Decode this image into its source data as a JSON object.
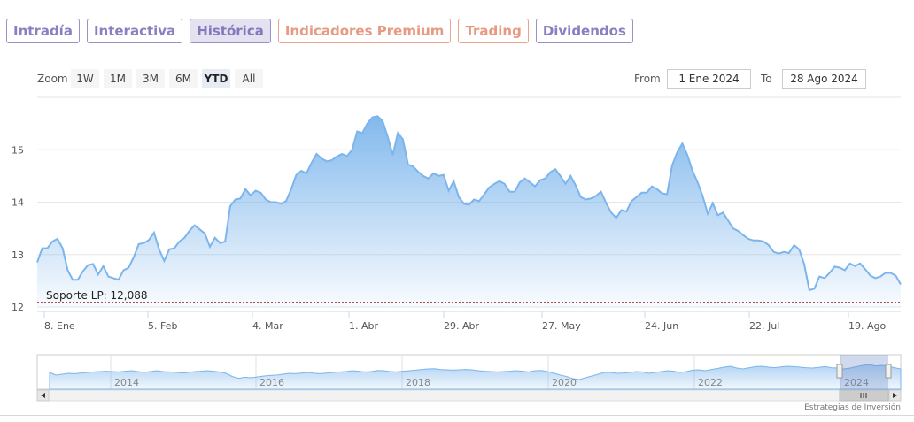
{
  "tabs": [
    {
      "label": "Intradía",
      "style": "purple"
    },
    {
      "label": "Interactiva",
      "style": "purple"
    },
    {
      "label": "Histórica",
      "style": "active"
    },
    {
      "label": "Indicadores Premium",
      "style": "orange"
    },
    {
      "label": "Trading",
      "style": "orange"
    },
    {
      "label": "Dividendos",
      "style": "purple"
    }
  ],
  "zoom": {
    "label": "Zoom",
    "buttons": [
      "1W",
      "1M",
      "3M",
      "6M",
      "YTD",
      "All"
    ],
    "selected": "YTD"
  },
  "range": {
    "from_label": "From",
    "from_value": "1 Ene 2024",
    "to_label": "To",
    "to_value": "28 Ago 2024"
  },
  "credits": "Estrategias de Inversión",
  "colors": {
    "line": "#7cb5ec",
    "fill_top": "#7cb5ec",
    "support": "#8b1a1a",
    "tab_purple": "#8a7fc0",
    "tab_orange": "#e89a80"
  },
  "chart_data": {
    "type": "area",
    "title": "",
    "ylim": [
      12,
      16
    ],
    "yticks": [
      12,
      13,
      14,
      15
    ],
    "xticks": [
      "8. Ene",
      "5. Feb",
      "4. Mar",
      "1. Abr",
      "29. Abr",
      "27. May",
      "24. Jun",
      "22. Jul",
      "19. Ago"
    ],
    "grid": true,
    "annotation": {
      "label": "Soporte LP: 12,088",
      "value": 12.088
    },
    "series": [
      {
        "values": [
          12.85,
          13.12,
          13.12,
          13.25,
          13.3,
          13.12,
          12.7,
          12.52,
          12.52,
          12.68,
          12.8,
          12.82,
          12.62,
          12.78,
          12.58,
          12.55,
          12.52,
          12.7,
          12.75,
          12.95,
          13.2,
          13.22,
          13.28,
          13.42,
          13.1,
          12.88,
          13.1,
          13.12,
          13.25,
          13.32,
          13.46,
          13.56,
          13.48,
          13.4,
          13.15,
          13.32,
          13.22,
          13.25,
          13.92,
          14.05,
          14.07,
          14.25,
          14.13,
          14.22,
          14.18,
          14.05,
          14.0,
          14.0,
          13.97,
          14.02,
          14.25,
          14.52,
          14.6,
          14.55,
          14.75,
          14.92,
          14.83,
          14.78,
          14.8,
          14.87,
          14.92,
          14.88,
          15.0,
          15.35,
          15.32,
          15.5,
          15.62,
          15.64,
          15.55,
          15.25,
          14.9,
          15.32,
          15.2,
          14.72,
          14.68,
          14.58,
          14.5,
          14.45,
          14.55,
          14.5,
          14.52,
          14.22,
          14.4,
          14.1,
          13.97,
          13.95,
          14.05,
          14.02,
          14.15,
          14.28,
          14.35,
          14.4,
          14.35,
          14.2,
          14.2,
          14.38,
          14.45,
          14.38,
          14.3,
          14.42,
          14.45,
          14.57,
          14.63,
          14.5,
          14.35,
          14.5,
          14.32,
          14.1,
          14.05,
          14.07,
          14.12,
          14.2,
          13.98,
          13.8,
          13.7,
          13.85,
          13.82,
          14.02,
          14.1,
          14.18,
          14.18,
          14.3,
          14.25,
          14.17,
          14.15,
          14.7,
          14.95,
          15.12,
          14.9,
          14.6,
          14.38,
          14.12,
          13.78,
          13.98,
          13.75,
          13.8,
          13.65,
          13.5,
          13.45,
          13.37,
          13.3,
          13.27,
          13.27,
          13.25,
          13.18,
          13.05,
          13.02,
          13.05,
          13.03,
          13.18,
          13.1,
          12.82,
          12.32,
          12.35,
          12.58,
          12.55,
          12.65,
          12.77,
          12.75,
          12.7,
          12.83,
          12.78,
          12.83,
          12.72,
          12.6,
          12.55,
          12.58,
          12.65,
          12.65,
          12.6,
          12.43
        ]
      }
    ],
    "navigator": {
      "labels": [
        "2014",
        "2016",
        "2018",
        "2020",
        "2022",
        "2024"
      ],
      "values": [
        0.45,
        0.3,
        0.35,
        0.4,
        0.38,
        0.42,
        0.45,
        0.48,
        0.5,
        0.52,
        0.5,
        0.48,
        0.52,
        0.55,
        0.5,
        0.46,
        0.5,
        0.55,
        0.5,
        0.48,
        0.46,
        0.42,
        0.45,
        0.5,
        0.52,
        0.55,
        0.52,
        0.48,
        0.4,
        0.22,
        0.12,
        0.18,
        0.15,
        0.2,
        0.25,
        0.28,
        0.3,
        0.35,
        0.4,
        0.38,
        0.42,
        0.45,
        0.4,
        0.38,
        0.42,
        0.45,
        0.48,
        0.5,
        0.55,
        0.52,
        0.48,
        0.5,
        0.56,
        0.55,
        0.5,
        0.48,
        0.52,
        0.55,
        0.58,
        0.62,
        0.65,
        0.66,
        0.62,
        0.6,
        0.58,
        0.6,
        0.62,
        0.6,
        0.55,
        0.52,
        0.5,
        0.48,
        0.5,
        0.52,
        0.55,
        0.52,
        0.48,
        0.55,
        0.56,
        0.5,
        0.4,
        0.3,
        0.22,
        0.1,
        0.05,
        0.15,
        0.25,
        0.35,
        0.45,
        0.45,
        0.4,
        0.42,
        0.45,
        0.5,
        0.48,
        0.4,
        0.45,
        0.5,
        0.55,
        0.52,
        0.45,
        0.5,
        0.58,
        0.6,
        0.55,
        0.62,
        0.68,
        0.75,
        0.8,
        0.7,
        0.65,
        0.72,
        0.78,
        0.8,
        0.75,
        0.72,
        0.76,
        0.8,
        0.78,
        0.75,
        0.72,
        0.7,
        0.74,
        0.78,
        0.72,
        0.7,
        0.65,
        0.7,
        0.78,
        0.85,
        0.9,
        0.82,
        0.85,
        0.8,
        0.72,
        0.65
      ]
    }
  }
}
